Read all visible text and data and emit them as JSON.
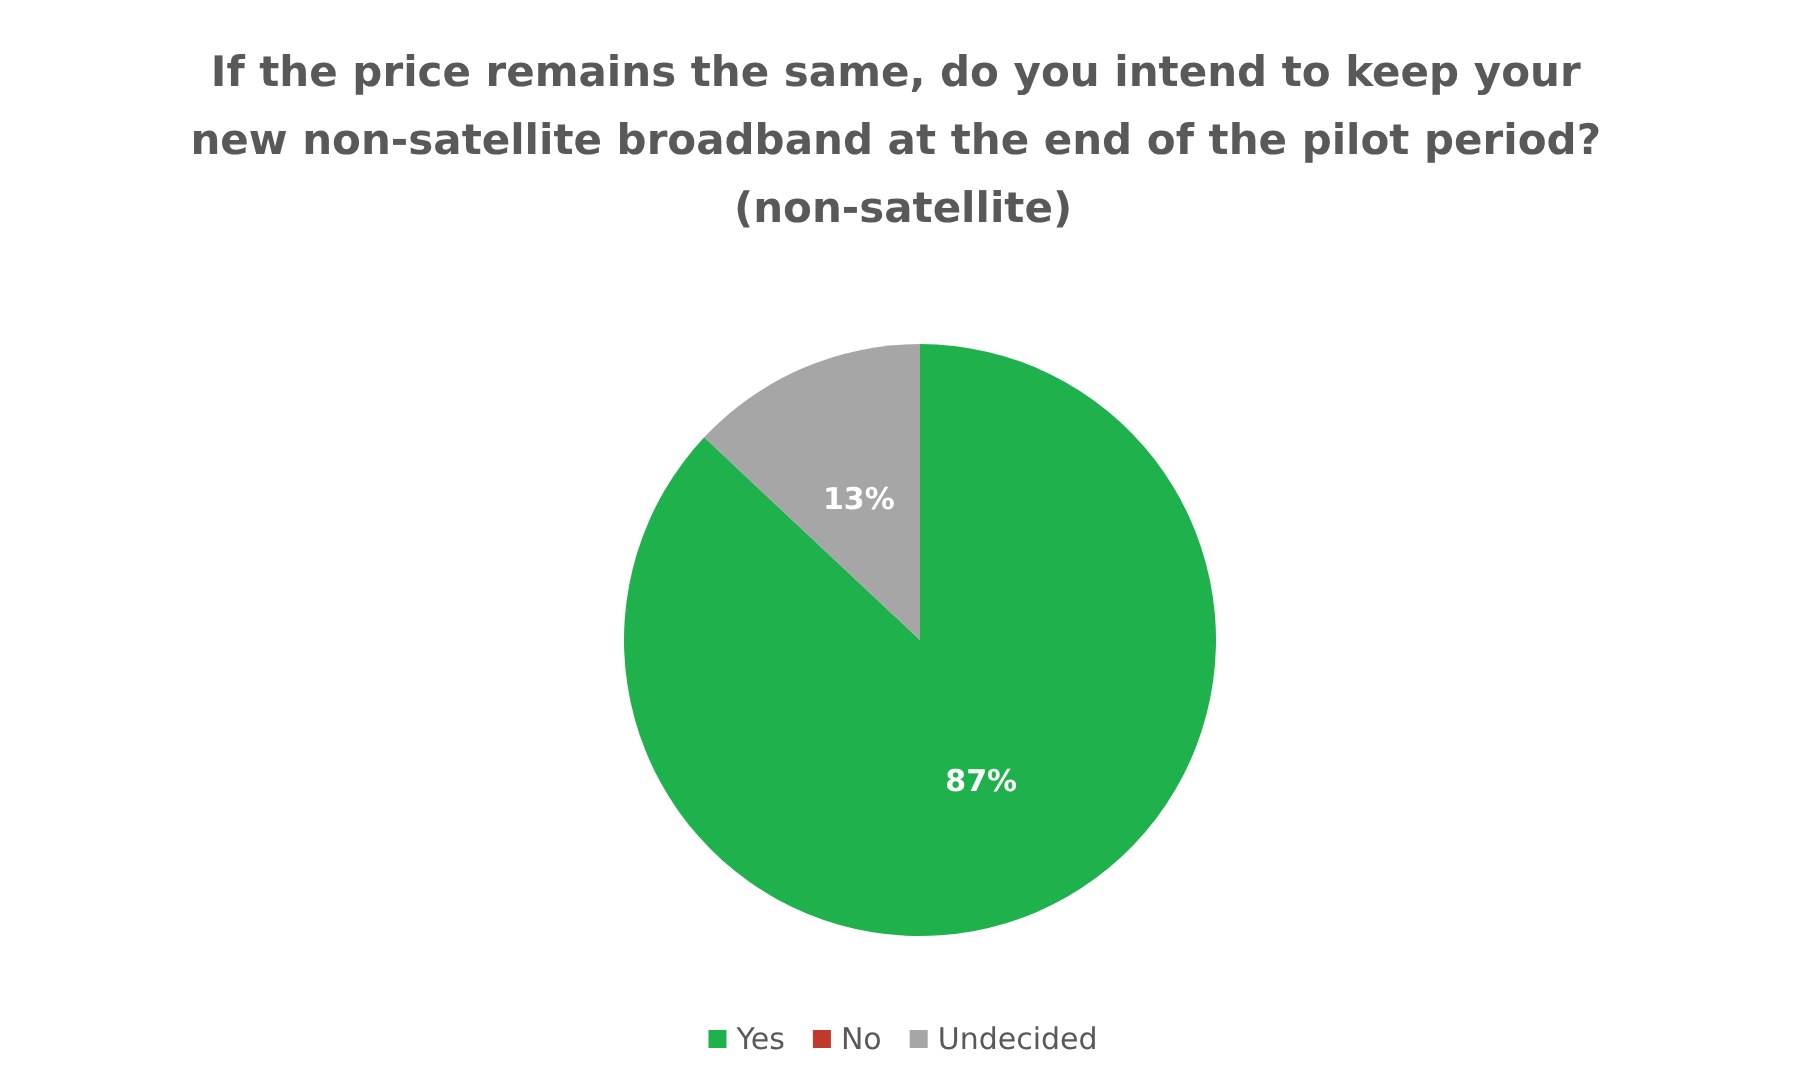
{
  "chart_data": {
    "type": "pie",
    "title": "If the price remains the same, do you intend to keep your new non-satellite broadband at the end of the pilot period? (non-satellite)",
    "categories": [
      "Yes",
      "No",
      "Undecided"
    ],
    "values": [
      87,
      0,
      13
    ],
    "colors": [
      "#1eb14c",
      "#c0392b",
      "#a6a6a6"
    ],
    "value_labels": [
      "87%",
      null,
      "13%"
    ],
    "legend": "bottom"
  }
}
